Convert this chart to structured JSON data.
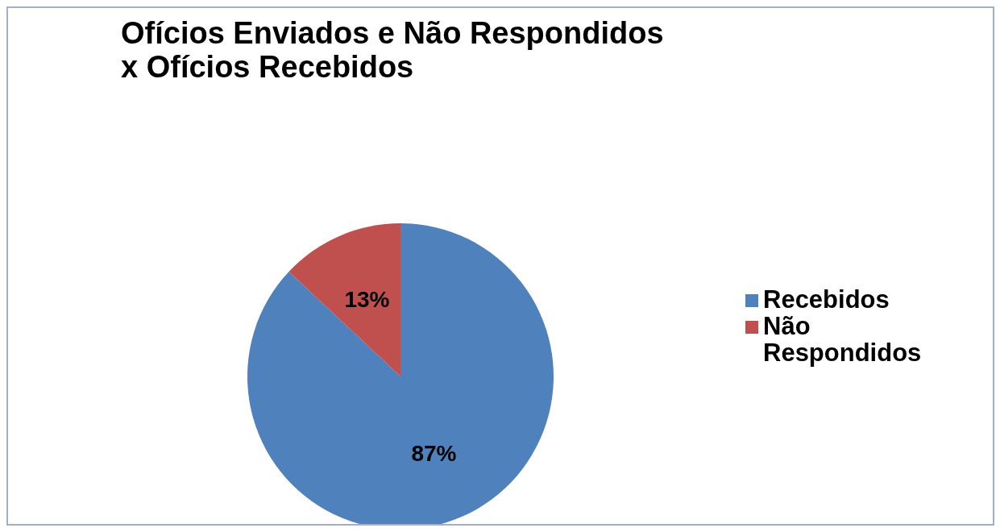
{
  "chart_data": {
    "type": "pie",
    "title": "Ofícios Enviados e Não Respondidos\nx Ofícios Recebidos",
    "categories": [
      "Recebidos",
      "Não Respondidos"
    ],
    "values": [
      87,
      13
    ],
    "colors": [
      "#4f81bd",
      "#c0504d"
    ],
    "value_labels": [
      "87%",
      "13%"
    ],
    "legend": "right"
  }
}
